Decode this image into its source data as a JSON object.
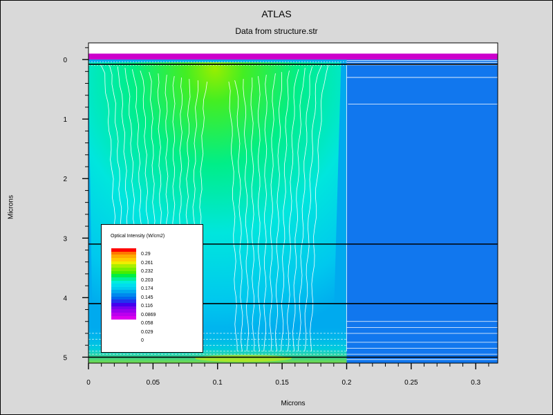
{
  "chart_data": {
    "type": "heatmap",
    "title": "ATLAS",
    "subtitle": "Data from structure.str",
    "xlabel": "Microns",
    "ylabel": "Microns",
    "xlim": [
      0,
      0.317
    ],
    "ylim": [
      5.1,
      -0.28
    ],
    "y_inverted": true,
    "grid": false,
    "x_ticks": [
      0,
      0.05,
      0.1,
      0.15,
      0.2,
      0.25,
      0.3
    ],
    "x_tick_labels": [
      "0",
      "0.05",
      "0.1",
      "0.15",
      "0.2",
      "0.25",
      "0.3"
    ],
    "y_ticks": [
      0,
      1,
      2,
      3,
      4,
      5
    ],
    "y_tick_labels": [
      "0",
      "1",
      "2",
      "3",
      "4",
      "5"
    ],
    "layer_boundaries_y": [
      0.08,
      3.1,
      4.1,
      5.0
    ],
    "top_layer": {
      "y_top": -0.1,
      "y_bottom": 0.0,
      "color": "#cc00cc"
    },
    "beam_center_x": 0.1,
    "beam_right_edge_x": 0.2,
    "legend": {
      "title": "Optical Intensity (W/cm2)",
      "placement": "lower-left",
      "labels": [
        "0.29",
        "0.261",
        "0.232",
        "0.203",
        "0.174",
        "0.145",
        "0.116",
        "0.0869",
        "0.058",
        "0.029",
        "0"
      ],
      "colors": [
        "#ff0000",
        "#ff7700",
        "#ffaa00",
        "#ffcc00",
        "#eeee00",
        "#aaee00",
        "#77ee00",
        "#44ee00",
        "#00ee44",
        "#00ee99",
        "#00eedd",
        "#00ddee",
        "#00ccee",
        "#00aaee",
        "#0088ee",
        "#0066ee",
        "#2233ee",
        "#4400ee",
        "#7700ee",
        "#9900ee",
        "#bb00ee",
        "#dd00ee"
      ]
    }
  }
}
